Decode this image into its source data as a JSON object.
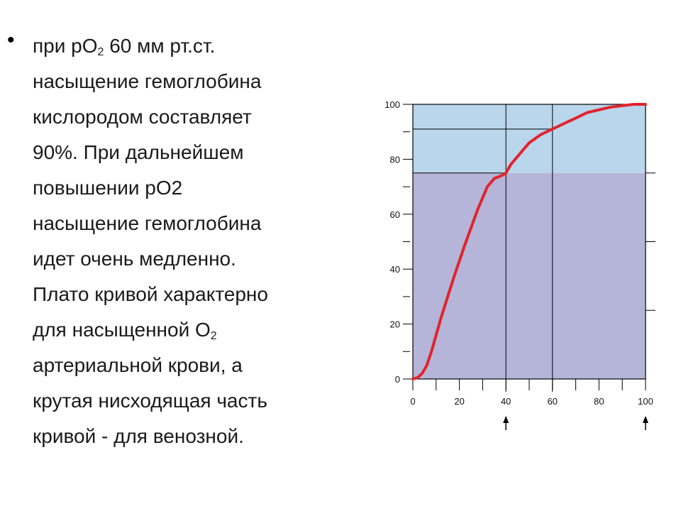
{
  "text": {
    "bullet": "•",
    "line1_a": "при рО",
    "line1_sub": "2",
    "line1_b": " 60 мм рт.ст.",
    "line2": "насыщение гемоглобина",
    "line3": "кислородом составляет",
    "line4": "90%. При дальнейшем",
    "line5": "повышении рО2",
    "line6": "насыщение гемоглобина",
    "line7": "идет очень медленно.",
    "line8": "Плато кривой характерно",
    "line9_a": "для насыщенной О",
    "line9_sub": "2",
    "line10": "артериальной крови, а",
    "line11": "крутая нисходящая часть",
    "line12": "кривой - для венозной."
  },
  "colors": {
    "upper_zone": "#b9d6ec",
    "lower_zone": "#b4b5d9",
    "curve": "#e3232c",
    "axis": "#000000"
  },
  "icons": {
    "marker": "up-arrow-icon"
  },
  "chart_data": {
    "type": "line",
    "title": "",
    "xlabel": "",
    "ylabel": "",
    "xlim": [
      0,
      100
    ],
    "ylim": [
      0,
      100
    ],
    "x_ticks": [
      "0",
      "20",
      "40",
      "60",
      "80",
      "100"
    ],
    "y_ticks": [
      "0",
      "20",
      "40",
      "60",
      "80",
      "100"
    ],
    "zones": [
      {
        "from": 0,
        "to": 75,
        "color": "#b4b5d9"
      },
      {
        "from": 75,
        "to": 100,
        "color": "#b9d6ec"
      }
    ],
    "reference_lines": [
      {
        "x": 40,
        "y": 75
      },
      {
        "x": 60,
        "y": 91
      }
    ],
    "x_markers": [
      40,
      100
    ],
    "series": [
      {
        "x": [
          0,
          2,
          4,
          6,
          8,
          10,
          12,
          15,
          18,
          20,
          22,
          25,
          28,
          30,
          32,
          35,
          38,
          40,
          42,
          45,
          48,
          50,
          55,
          60,
          65,
          70,
          75,
          80,
          85,
          90,
          95,
          100
        ],
        "y": [
          0,
          0.5,
          2,
          5,
          10,
          16,
          22,
          30,
          38,
          43,
          48,
          55,
          62,
          66,
          70,
          73,
          74,
          75,
          78,
          81,
          84,
          86,
          89,
          91,
          93,
          95,
          97,
          98,
          99,
          99.5,
          100,
          100
        ]
      }
    ]
  }
}
